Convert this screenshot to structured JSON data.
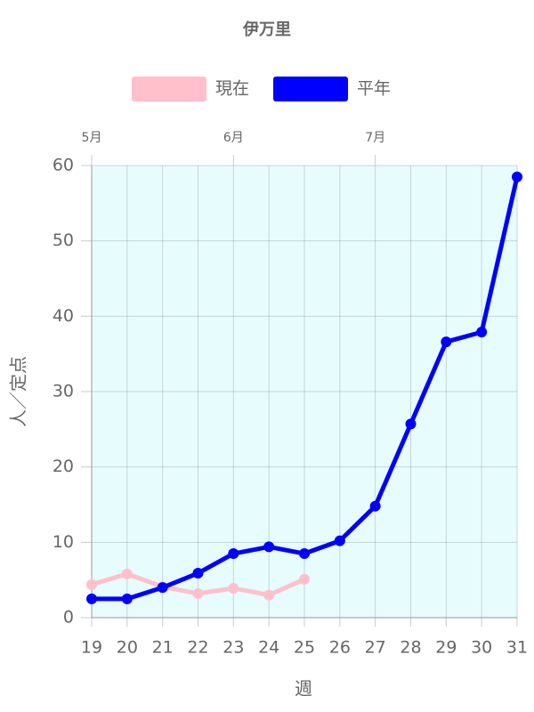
{
  "chart_data": {
    "type": "line",
    "title": "伊万里",
    "x": [
      19,
      20,
      21,
      22,
      23,
      24,
      25,
      26,
      27,
      28,
      29,
      30,
      31
    ],
    "series": [
      {
        "name": "現在",
        "color": "#ffc0cb",
        "values": [
          4.4,
          5.8,
          4.1,
          3.2,
          3.9,
          3.0,
          5.1,
          null,
          null,
          null,
          null,
          null,
          null
        ]
      },
      {
        "name": "平年",
        "color": "#0000ff",
        "values": [
          2.5,
          2.5,
          4.0,
          5.9,
          8.5,
          9.4,
          8.5,
          10.2,
          14.8,
          25.7,
          36.6,
          37.9,
          58.5
        ]
      }
    ],
    "xlim": [
      19,
      31
    ],
    "xticks": [
      19,
      20,
      21,
      22,
      23,
      24,
      25,
      26,
      27,
      28,
      29,
      30,
      31
    ],
    "x2ticks": [
      {
        "value": 19,
        "label": "5月"
      },
      {
        "value": 23,
        "label": "6月"
      },
      {
        "value": 27,
        "label": "7月"
      }
    ],
    "ylim": [
      0,
      60
    ],
    "yticks": [
      0,
      10,
      20,
      30,
      40,
      50,
      60
    ],
    "xlabel": "週",
    "ylabel": "人／定点",
    "grid": true,
    "legend": "top",
    "background": "#e6fcfd"
  }
}
